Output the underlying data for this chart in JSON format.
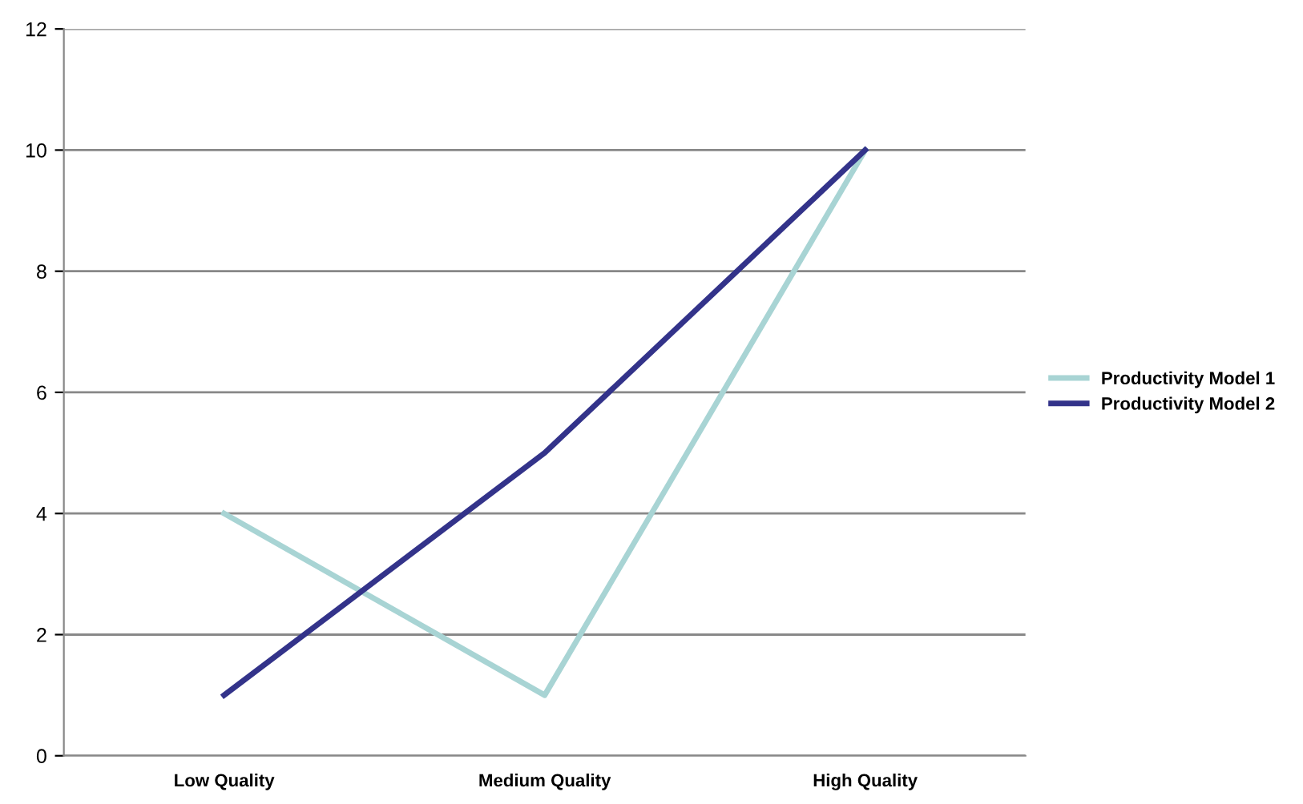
{
  "chart_data": {
    "type": "line",
    "categories": [
      "Low Quality",
      "Medium Quality",
      "High Quality"
    ],
    "series": [
      {
        "name": "Productivity Model 1",
        "color": "#a8d4d4",
        "values": [
          4,
          1,
          10
        ]
      },
      {
        "name": "Productivity Model 2",
        "color": "#33338a",
        "values": [
          1,
          5,
          10
        ]
      }
    ],
    "ylim": [
      0,
      12
    ],
    "yticks": [
      0,
      2,
      4,
      6,
      8,
      10,
      12
    ],
    "grid": "y",
    "legend": "right",
    "marker": "none",
    "line_style": "solid"
  }
}
